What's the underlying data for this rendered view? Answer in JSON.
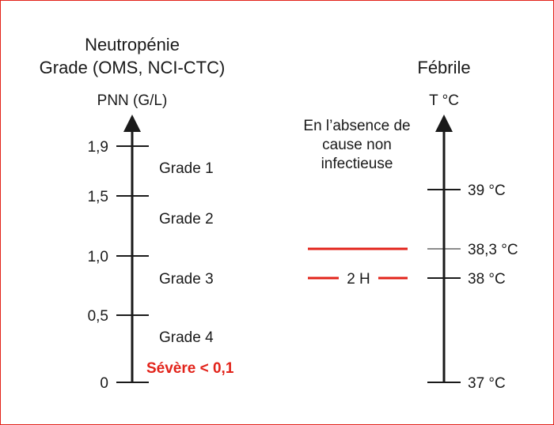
{
  "left": {
    "title_line1": "Neutropénie",
    "title_line2": "Grade (OMS, NCI-CTC)",
    "unit": "PNN (G/L)",
    "ticks": [
      "1,9",
      "1,5",
      "1,0",
      "0,5",
      "0"
    ],
    "grades": [
      "Grade 1",
      "Grade 2",
      "Grade 3",
      "Grade 4"
    ],
    "severe": "Sévère < 0,1"
  },
  "right": {
    "title": "Fébrile",
    "unit": "T °C",
    "note_line1": "En l’absence de",
    "note_line2": "cause non",
    "note_line3": "infectieuse",
    "ticks": [
      "39 °C",
      "38,3 °C",
      "38 °C",
      "37 °C"
    ],
    "duration": "2 H"
  },
  "colors": {
    "accent": "#e2231a",
    "text": "#1a1a1a",
    "border": "#e2231a"
  }
}
